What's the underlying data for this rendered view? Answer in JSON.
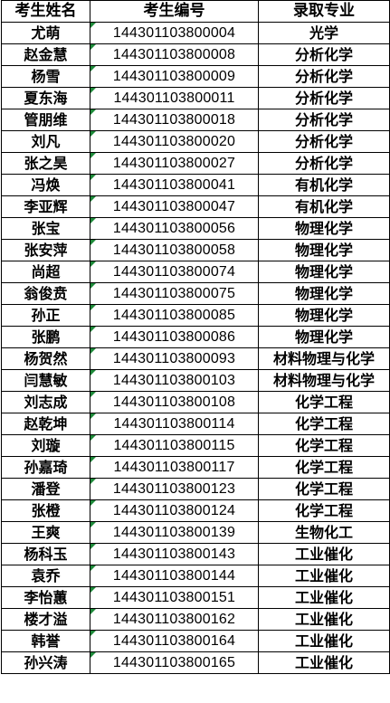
{
  "headers": {
    "name": "考生姓名",
    "id": "考生编号",
    "major": "录取专业"
  },
  "colors": {
    "marker": "#1e8a3a",
    "border": "#000000"
  },
  "rows": [
    {
      "name": "尤萌",
      "id": "144301103800004",
      "major": "光学"
    },
    {
      "name": "赵金慧",
      "id": "144301103800008",
      "major": "分析化学"
    },
    {
      "name": "杨雪",
      "id": "144301103800009",
      "major": "分析化学"
    },
    {
      "name": "夏东海",
      "id": "144301103800011",
      "major": "分析化学"
    },
    {
      "name": "管朋维",
      "id": "144301103800018",
      "major": "分析化学"
    },
    {
      "name": "刘凡",
      "id": "144301103800020",
      "major": "分析化学"
    },
    {
      "name": "张之昊",
      "id": "144301103800027",
      "major": "分析化学"
    },
    {
      "name": "冯焕",
      "id": "144301103800041",
      "major": "有机化学"
    },
    {
      "name": "李亚辉",
      "id": "144301103800047",
      "major": "有机化学"
    },
    {
      "name": "张宝",
      "id": "144301103800056",
      "major": "物理化学"
    },
    {
      "name": "张安萍",
      "id": "144301103800058",
      "major": "物理化学"
    },
    {
      "name": "尚超",
      "id": "144301103800074",
      "major": "物理化学"
    },
    {
      "name": "翁俊贲",
      "id": "144301103800075",
      "major": "物理化学"
    },
    {
      "name": "孙正",
      "id": "144301103800085",
      "major": "物理化学"
    },
    {
      "name": "张鹏",
      "id": "144301103800086",
      "major": "物理化学"
    },
    {
      "name": "杨贺然",
      "id": "144301103800093",
      "major": "材料物理与化学"
    },
    {
      "name": "闫慧敏",
      "id": "144301103800103",
      "major": "材料物理与化学"
    },
    {
      "name": "刘志成",
      "id": "144301103800108",
      "major": "化学工程"
    },
    {
      "name": "赵乾坤",
      "id": "144301103800114",
      "major": "化学工程"
    },
    {
      "name": "刘璇",
      "id": "144301103800115",
      "major": "化学工程"
    },
    {
      "name": "孙嘉琦",
      "id": "144301103800117",
      "major": "化学工程"
    },
    {
      "name": "潘登",
      "id": "144301103800123",
      "major": "化学工程"
    },
    {
      "name": "张橙",
      "id": "144301103800124",
      "major": "化学工程"
    },
    {
      "name": "王爽",
      "id": "144301103800139",
      "major": "生物化工"
    },
    {
      "name": "杨科玉",
      "id": "144301103800143",
      "major": "工业催化"
    },
    {
      "name": "袁乔",
      "id": "144301103800144",
      "major": "工业催化"
    },
    {
      "name": "李怡蕙",
      "id": "144301103800151",
      "major": "工业催化"
    },
    {
      "name": "楼才溢",
      "id": "144301103800162",
      "major": "工业催化"
    },
    {
      "name": "韩誉",
      "id": "144301103800164",
      "major": "工业催化"
    },
    {
      "name": "孙兴涛",
      "id": "144301103800165",
      "major": "工业催化"
    }
  ]
}
